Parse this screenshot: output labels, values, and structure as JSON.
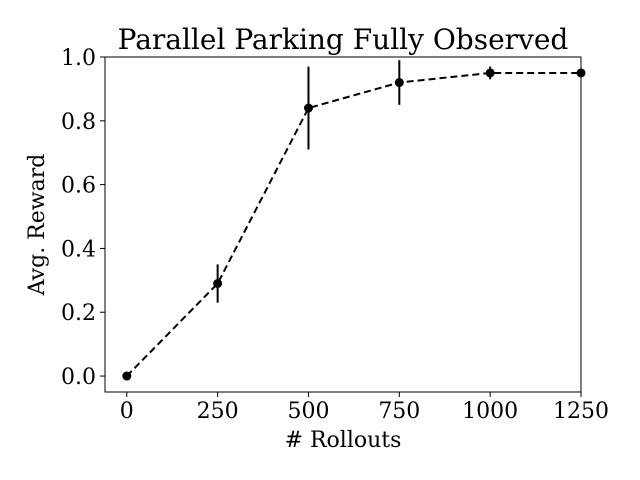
{
  "chart_data": {
    "type": "line",
    "title": "Parallel Parking Fully Observed",
    "xlabel": "# Rollouts",
    "ylabel": "Avg. Reward",
    "xlim": [
      -60,
      1250
    ],
    "ylim": [
      -0.05,
      1.0
    ],
    "xticks": [
      0,
      250,
      500,
      750,
      1000,
      1250
    ],
    "xtick_labels": [
      "0",
      "250",
      "500",
      "750",
      "1000",
      "1250"
    ],
    "yticks": [
      0.0,
      0.2,
      0.4,
      0.6,
      0.8,
      1.0
    ],
    "ytick_labels": [
      "0.0",
      "0.2",
      "0.4",
      "0.6",
      "0.8",
      "1.0"
    ],
    "grid": false,
    "series": [
      {
        "x": [
          0,
          250,
          500,
          750,
          1000,
          1250
        ],
        "y": [
          0.0,
          0.29,
          0.84,
          0.92,
          0.95,
          0.95
        ],
        "yerr": [
          0.0,
          0.06,
          0.13,
          0.07,
          0.02,
          0.0
        ],
        "color": "#000000",
        "line_style": "dashed",
        "marker": "circle"
      }
    ]
  }
}
